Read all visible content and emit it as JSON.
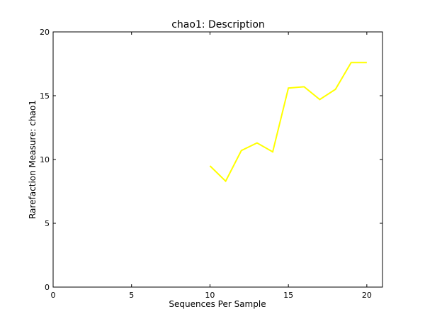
{
  "chart_data": {
    "type": "line",
    "title": "chao1: Description",
    "xlabel": "Sequences Per Sample",
    "ylabel": "Rarefaction Measure: chao1",
    "xlim": [
      0,
      21
    ],
    "ylim": [
      0,
      20
    ],
    "xticks": [
      "0",
      "5",
      "10",
      "15",
      "20"
    ],
    "yticks": [
      "0",
      "5",
      "10",
      "15",
      "20"
    ],
    "grid": false,
    "legend": "none",
    "series": [
      {
        "color": "#ffff00",
        "x": [
          10,
          11,
          12,
          13,
          14,
          15,
          16,
          17,
          18,
          19,
          20
        ],
        "y": [
          9.5,
          8.3,
          10.7,
          11.3,
          10.6,
          15.6,
          15.7,
          14.7,
          15.5,
          17.6,
          17.6
        ]
      }
    ]
  }
}
